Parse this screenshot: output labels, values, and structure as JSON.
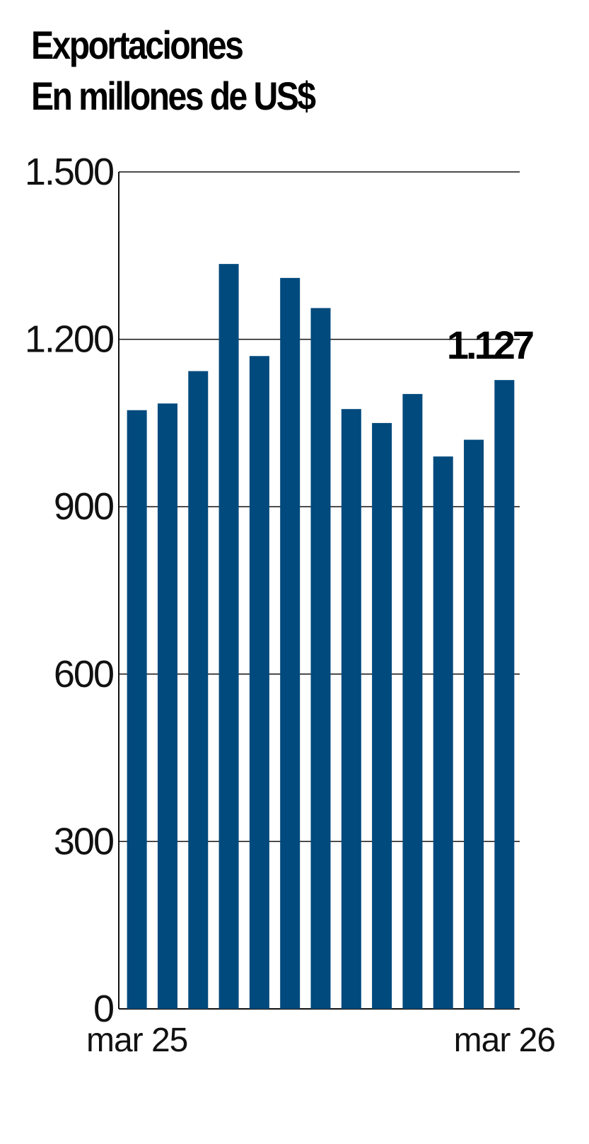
{
  "title_line1": "Exportaciones",
  "title_line2": "En millones de US$",
  "chart_data": {
    "type": "bar",
    "title": "Exportaciones",
    "subtitle": "En millones de US$",
    "categories": [
      "mar 25",
      "",
      "",
      "",
      "",
      "",
      "",
      "",
      "",
      "",
      "",
      "",
      "mar 26"
    ],
    "values": [
      1073,
      1085,
      1143,
      1335,
      1170,
      1310,
      1256,
      1075,
      1050,
      1102,
      990,
      1020,
      1127
    ],
    "ylim": [
      0,
      1500
    ],
    "yticks": [
      0,
      300,
      600,
      900,
      1200,
      1500
    ],
    "ytick_labels": [
      "0",
      "300",
      "600",
      "900",
      "1.200",
      "1.500"
    ],
    "xtick_labels": [
      "mar 25",
      "mar 26"
    ],
    "xtick_indices": [
      0,
      12
    ],
    "annotation": {
      "index": 12,
      "text": "1.127"
    },
    "bar_color": "#014a7d",
    "grid": true
  }
}
